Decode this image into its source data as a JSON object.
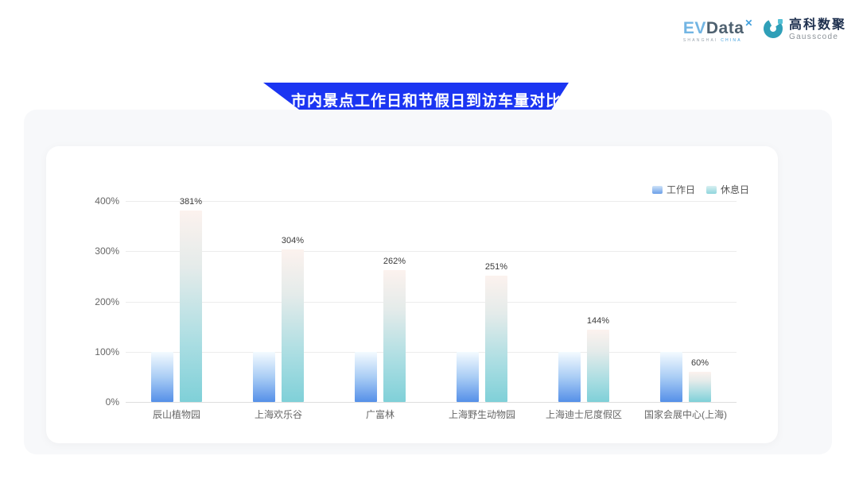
{
  "title": "市内景点工作日和节假日到访车量对比",
  "logos": {
    "evdata": {
      "ev": "EV",
      "data": "Data",
      "sup": "✕",
      "sub_left": "SHANGHAI",
      "sub_right": "CHINA"
    },
    "gausscode": {
      "cn": "高科数聚",
      "en": "Gausscode"
    }
  },
  "colors": {
    "banner_blue": "#1b35f2",
    "panel_bg": "#f7f8fa",
    "card_bg": "#ffffff",
    "workday_bottom": "#5590e8",
    "restday_bottom": "#7fd0d8",
    "gausscode_teal": "#2f9fb8"
  },
  "chart_data": {
    "type": "bar",
    "title": "市内景点工作日和节假日到访车量对比",
    "categories": [
      "辰山植物园",
      "上海欢乐谷",
      "广富林",
      "上海野生动物园",
      "上海迪士尼度假区",
      "国家会展中心(上海)"
    ],
    "series": [
      {
        "name": "工作日",
        "values": [
          100,
          100,
          100,
          100,
          100,
          100
        ],
        "labels": null
      },
      {
        "name": "休息日",
        "values": [
          381,
          304,
          262,
          251,
          144,
          60
        ],
        "labels": [
          "381%",
          "304%",
          "262%",
          "251%",
          "144%",
          "60%"
        ]
      }
    ],
    "xlabel": "",
    "ylabel": "",
    "ylim": [
      0,
      400
    ],
    "ytick_step": 100,
    "yticks": [
      "0%",
      "100%",
      "200%",
      "300%",
      "400%"
    ],
    "grid": true,
    "legend_position": "top-right"
  }
}
